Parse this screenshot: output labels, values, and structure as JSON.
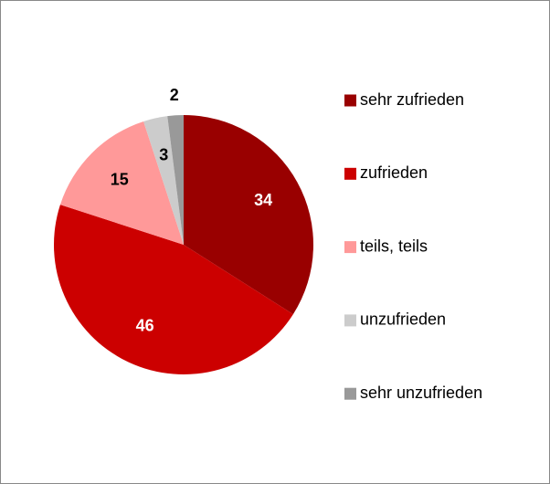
{
  "chart_data": {
    "type": "pie",
    "categories": [
      "sehr zufrieden",
      "zufrieden",
      "teils, teils",
      "unzufrieden",
      "sehr unzufrieden"
    ],
    "values": [
      34,
      46,
      15,
      3,
      2
    ],
    "colors": [
      "#990000",
      "#cc0000",
      "#ff9999",
      "#cccccc",
      "#999999"
    ],
    "legend": "right"
  }
}
